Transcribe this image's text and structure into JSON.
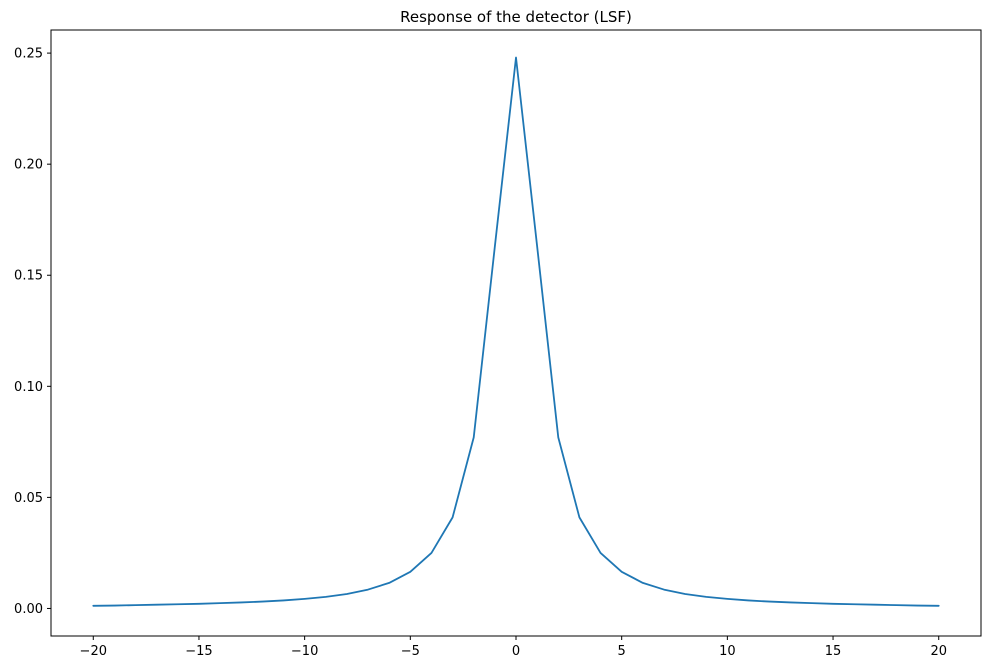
{
  "chart_data": {
    "type": "line",
    "title": "Response of the detector (LSF)",
    "xlabel": "",
    "ylabel": "",
    "xlim": [
      -22,
      22
    ],
    "ylim": [
      -0.0124,
      0.2604
    ],
    "xticks": [
      -20,
      -15,
      -10,
      -5,
      0,
      5,
      10,
      15,
      20
    ],
    "xtick_labels": [
      "−20",
      "−15",
      "−10",
      "−5",
      "0",
      "5",
      "10",
      "15",
      "20"
    ],
    "yticks": [
      0.0,
      0.05,
      0.1,
      0.15,
      0.2,
      0.25
    ],
    "ytick_labels": [
      "0.00",
      "0.05",
      "0.10",
      "0.15",
      "0.20",
      "0.25"
    ],
    "grid": false,
    "series": [
      {
        "color": "#1f77b4",
        "x": [
          -20,
          -19,
          -18,
          -17,
          -16,
          -15,
          -14,
          -13,
          -12,
          -11,
          -10,
          -9,
          -8,
          -7,
          -6,
          -5,
          -4,
          -3,
          -2,
          -1,
          0,
          1,
          2,
          3,
          4,
          5,
          6,
          7,
          8,
          9,
          10,
          11,
          12,
          13,
          14,
          15,
          16,
          17,
          18,
          19,
          20
        ],
        "y": [
          0.0012,
          0.0013,
          0.0015,
          0.0017,
          0.0019,
          0.0021,
          0.0024,
          0.0027,
          0.0031,
          0.0036,
          0.0043,
          0.0052,
          0.0065,
          0.0085,
          0.0115,
          0.0165,
          0.025,
          0.041,
          0.077,
          0.163,
          0.248,
          0.163,
          0.077,
          0.041,
          0.025,
          0.0165,
          0.0115,
          0.0085,
          0.0065,
          0.0052,
          0.0043,
          0.0036,
          0.0031,
          0.0027,
          0.0024,
          0.0021,
          0.0019,
          0.0017,
          0.0015,
          0.0013,
          0.0012
        ]
      }
    ]
  }
}
